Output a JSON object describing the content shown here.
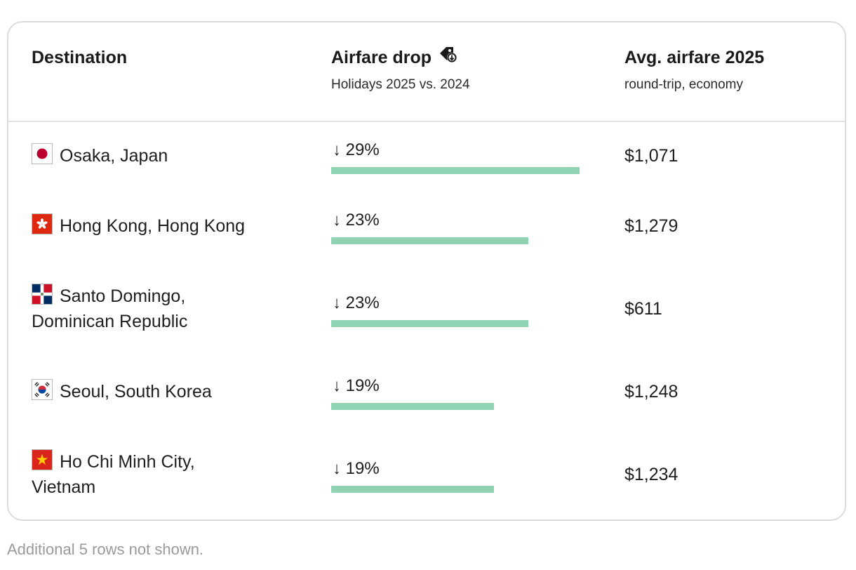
{
  "header": {
    "destination": "Destination",
    "drop_title": "Airfare drop",
    "drop_subtitle": "Holidays 2025 vs. 2024",
    "fare_title": "Avg. airfare 2025",
    "fare_subtitle": "round-trip, economy",
    "drop_icon": "price-tag-down-icon"
  },
  "rows": [
    {
      "city": "Osaka, Japan",
      "flag": "japan-flag-icon",
      "drop_label": "↓ 29%",
      "drop_pct": 29,
      "fare": "$1,071"
    },
    {
      "city": "Hong Kong, Hong Kong",
      "flag": "hong-kong-flag-icon",
      "drop_label": "↓ 23%",
      "drop_pct": 23,
      "fare": "$1,279"
    },
    {
      "city": "Santo Domingo, Dominican Republic",
      "flag": "dominican-republic-flag-icon",
      "drop_label": "↓ 23%",
      "drop_pct": 23,
      "fare": "$611"
    },
    {
      "city": "Seoul, South Korea",
      "flag": "south-korea-flag-icon",
      "drop_label": "↓ 19%",
      "drop_pct": 19,
      "fare": "$1,248"
    },
    {
      "city": "Ho Chi Minh City, Vietnam",
      "flag": "vietnam-flag-icon",
      "drop_label": "↓ 19%",
      "drop_pct": 19,
      "fare": "$1,234"
    }
  ],
  "colors": {
    "bar": "#8fd3b3",
    "border": "#dcdcdc"
  },
  "footer": {
    "note": "Additional 5 rows not shown."
  }
}
